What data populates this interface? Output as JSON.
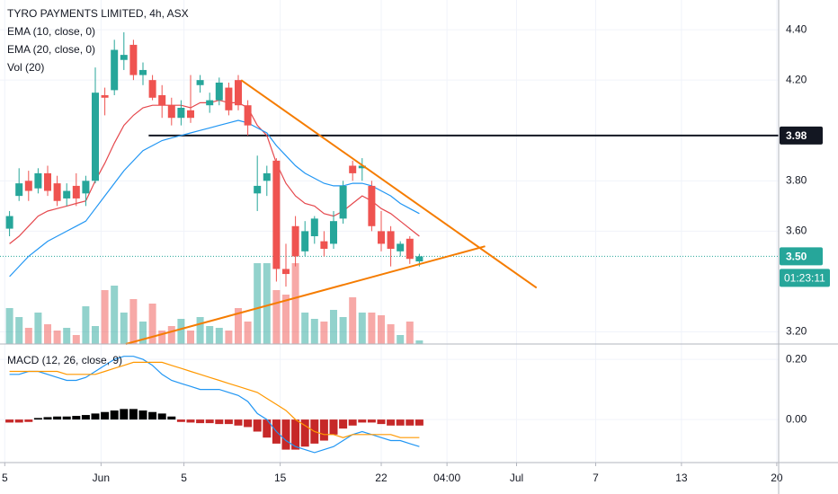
{
  "chart_data": [
    {
      "type": "candlestick",
      "title": "TYRO PAYMENTS LIMITED, 4h, ASX",
      "x": [
        1,
        2,
        3,
        4,
        5,
        6,
        7,
        8,
        9,
        10,
        11,
        12,
        13,
        14,
        15,
        16,
        17,
        18,
        19,
        20,
        21,
        22,
        23,
        24,
        25,
        26,
        27,
        28,
        29,
        30,
        31,
        32,
        33,
        34,
        35,
        36,
        37,
        38,
        39,
        40,
        41,
        42,
        43,
        44
      ],
      "open": [
        3.61,
        3.74,
        3.8,
        3.77,
        3.83,
        3.79,
        3.73,
        3.78,
        3.75,
        3.8,
        4.14,
        4.16,
        4.28,
        4.34,
        4.22,
        4.2,
        4.14,
        4.1,
        4.05,
        4.08,
        4.18,
        4.1,
        4.12,
        4.17,
        4.2,
        4.1,
        3.75,
        3.8,
        3.88,
        3.45,
        3.62,
        3.52,
        3.58,
        3.56,
        3.55,
        3.65,
        3.86,
        3.85,
        3.78,
        3.6,
        3.6,
        3.52,
        3.57,
        3.48
      ],
      "high": [
        3.68,
        3.85,
        3.84,
        3.85,
        3.86,
        3.82,
        3.79,
        3.83,
        3.82,
        4.25,
        4.17,
        4.36,
        4.39,
        4.36,
        4.27,
        4.22,
        4.18,
        4.13,
        4.12,
        4.22,
        4.22,
        4.15,
        4.21,
        4.19,
        4.22,
        4.12,
        3.9,
        3.86,
        3.89,
        3.55,
        3.66,
        3.64,
        3.66,
        3.6,
        3.68,
        3.8,
        3.88,
        3.89,
        3.8,
        3.68,
        3.62,
        3.56,
        3.58,
        3.51
      ],
      "low": [
        3.58,
        3.72,
        3.72,
        3.75,
        3.74,
        3.7,
        3.7,
        3.7,
        3.7,
        3.79,
        4.06,
        4.14,
        4.24,
        4.2,
        4.18,
        4.12,
        4.05,
        4.02,
        4.02,
        4.03,
        4.15,
        4.07,
        4.1,
        4.06,
        4.08,
        3.98,
        3.68,
        3.74,
        3.4,
        3.38,
        3.46,
        3.5,
        3.55,
        3.5,
        3.53,
        3.63,
        3.8,
        3.8,
        3.6,
        3.52,
        3.46,
        3.5,
        3.47,
        3.46
      ],
      "close": [
        3.66,
        3.79,
        3.76,
        3.83,
        3.76,
        3.72,
        3.76,
        3.73,
        3.8,
        4.15,
        4.13,
        4.32,
        4.3,
        4.22,
        4.24,
        4.13,
        4.1,
        4.05,
        4.09,
        4.05,
        4.2,
        4.12,
        4.19,
        4.08,
        4.1,
        4.02,
        3.78,
        3.83,
        3.45,
        3.43,
        3.5,
        3.6,
        3.65,
        3.53,
        3.64,
        3.78,
        3.83,
        3.86,
        3.62,
        3.55,
        3.53,
        3.55,
        3.49,
        3.5
      ],
      "up_color": "#26a69a",
      "down_color": "#ef5350",
      "volume_name": "Vol (20)",
      "volume": [
        40,
        30,
        18,
        35,
        22,
        15,
        18,
        10,
        42,
        20,
        60,
        65,
        35,
        50,
        25,
        45,
        15,
        20,
        28,
        15,
        30,
        20,
        18,
        15,
        40,
        25,
        90,
        90,
        60,
        55,
        90,
        35,
        28,
        25,
        38,
        30,
        52,
        35,
        35,
        32,
        22,
        10,
        25,
        4
      ],
      "y2lim": [
        0,
        383
      ],
      "series": [
        {
          "name": "EMA (10, close, 0)",
          "color": "#e5484d",
          "values": [
            3.55,
            3.58,
            3.62,
            3.66,
            3.68,
            3.69,
            3.7,
            3.71,
            3.72,
            3.8,
            3.87,
            3.95,
            4.02,
            4.06,
            4.09,
            4.1,
            4.1,
            4.1,
            4.1,
            4.09,
            4.11,
            4.11,
            4.12,
            4.11,
            4.11,
            4.09,
            4.02,
            3.98,
            3.87,
            3.79,
            3.74,
            3.71,
            3.7,
            3.67,
            3.66,
            3.68,
            3.71,
            3.74,
            3.72,
            3.69,
            3.67,
            3.64,
            3.61,
            3.58
          ]
        },
        {
          "name": "EMA (20, close, 0)",
          "color": "#2196f3",
          "values": [
            3.42,
            3.46,
            3.5,
            3.53,
            3.56,
            3.58,
            3.6,
            3.62,
            3.64,
            3.69,
            3.74,
            3.79,
            3.84,
            3.88,
            3.92,
            3.94,
            3.96,
            3.97,
            3.98,
            3.99,
            4.0,
            4.01,
            4.02,
            4.03,
            4.04,
            4.03,
            4.01,
            3.99,
            3.94,
            3.9,
            3.86,
            3.83,
            3.81,
            3.79,
            3.78,
            3.78,
            3.79,
            3.79,
            3.78,
            3.76,
            3.74,
            3.71,
            3.69,
            3.67
          ]
        }
      ],
      "trend_lines": [
        {
          "color": "#f57c00",
          "x": [
            25.3,
            56.3
          ],
          "y": [
            4.2,
            3.375
          ]
        },
        {
          "color": "#f57c00",
          "x": [
            13.2,
            50.9
          ],
          "y": [
            3.152,
            3.54
          ]
        }
      ],
      "horizontal_line": {
        "color": "#131722",
        "x_start": 15.6,
        "value": 3.98
      },
      "price_tags": [
        {
          "value": 3.98,
          "color": "#131722"
        },
        {
          "value": 3.5,
          "label": "3.50",
          "color": "#26a69a"
        }
      ],
      "countdown": "01:23:11",
      "xlim": [
        0,
        81.7
      ],
      "ylim": [
        3.152,
        4.518
      ],
      "yticks": [
        {
          "value": 4.4,
          "label": "4.40"
        },
        {
          "value": 4.2,
          "label": "4.20"
        },
        {
          "value": 3.8,
          "label": "3.80"
        },
        {
          "value": 3.6,
          "label": "3.60"
        },
        {
          "value": 3.2,
          "label": "3.20"
        }
      ],
      "grid": true
    },
    {
      "type": "macd",
      "title": "MACD (12, 26, close, 9)",
      "x": [
        1,
        2,
        3,
        4,
        5,
        6,
        7,
        8,
        9,
        10,
        11,
        12,
        13,
        14,
        15,
        16,
        17,
        18,
        19,
        20,
        21,
        22,
        23,
        24,
        25,
        26,
        27,
        28,
        29,
        30,
        31,
        32,
        33,
        34,
        35,
        36,
        37,
        38,
        39,
        40,
        41,
        42,
        43,
        44
      ],
      "histogram": [
        -0.01,
        -0.01,
        -0.008,
        0.005,
        0.008,
        0.01,
        0.01,
        0.012,
        0.015,
        0.02,
        0.025,
        0.03,
        0.035,
        0.035,
        0.03,
        0.025,
        0.02,
        0.01,
        -0.008,
        -0.01,
        -0.012,
        -0.012,
        -0.015,
        -0.015,
        -0.02,
        -0.025,
        -0.04,
        -0.06,
        -0.08,
        -0.1,
        -0.1,
        -0.09,
        -0.08,
        -0.07,
        -0.05,
        -0.03,
        -0.02,
        -0.01,
        -0.01,
        -0.015,
        -0.02,
        -0.02,
        -0.02,
        -0.02
      ],
      "positive_color": "#000000",
      "negative_color": "#c62828",
      "series": [
        {
          "color": "#2196f3",
          "values": [
            0.15,
            0.15,
            0.16,
            0.16,
            0.15,
            0.14,
            0.13,
            0.13,
            0.14,
            0.16,
            0.18,
            0.2,
            0.21,
            0.21,
            0.2,
            0.18,
            0.15,
            0.13,
            0.12,
            0.11,
            0.1,
            0.1,
            0.1,
            0.09,
            0.08,
            0.06,
            0.02,
            0.0,
            -0.04,
            -0.07,
            -0.09,
            -0.1,
            -0.11,
            -0.1,
            -0.09,
            -0.07,
            -0.05,
            -0.04,
            -0.05,
            -0.06,
            -0.07,
            -0.07,
            -0.08,
            -0.09
          ]
        },
        {
          "color": "#ff9800",
          "values": [
            0.16,
            0.16,
            0.16,
            0.16,
            0.16,
            0.16,
            0.15,
            0.15,
            0.15,
            0.15,
            0.16,
            0.17,
            0.18,
            0.19,
            0.19,
            0.19,
            0.19,
            0.18,
            0.17,
            0.16,
            0.15,
            0.14,
            0.13,
            0.12,
            0.11,
            0.1,
            0.09,
            0.07,
            0.05,
            0.03,
            0.0,
            -0.02,
            -0.04,
            -0.05,
            -0.05,
            -0.06,
            -0.05,
            -0.05,
            -0.05,
            -0.05,
            -0.05,
            -0.06,
            -0.06,
            -0.06
          ]
        }
      ],
      "xlim": [
        0,
        81.7
      ],
      "xticks": [
        {
          "value": 0.5,
          "label": "5"
        },
        {
          "value": 10.6,
          "label": "Jun"
        },
        {
          "value": 19.3,
          "label": "5"
        },
        {
          "value": 29.4,
          "label": "15"
        },
        {
          "value": 40,
          "label": "22"
        },
        {
          "value": 46.9,
          "label": "04:00"
        },
        {
          "value": 54.2,
          "label": "Jul"
        },
        {
          "value": 62.5,
          "label": "7"
        },
        {
          "value": 71.5,
          "label": "13"
        },
        {
          "value": 81.5,
          "label": "20"
        }
      ],
      "ylim": [
        -0.143,
        0.251
      ],
      "yticks": [
        {
          "value": 0.2,
          "label": "0.20"
        },
        {
          "value": 0,
          "label": "0.00"
        }
      ],
      "grid": true
    }
  ]
}
